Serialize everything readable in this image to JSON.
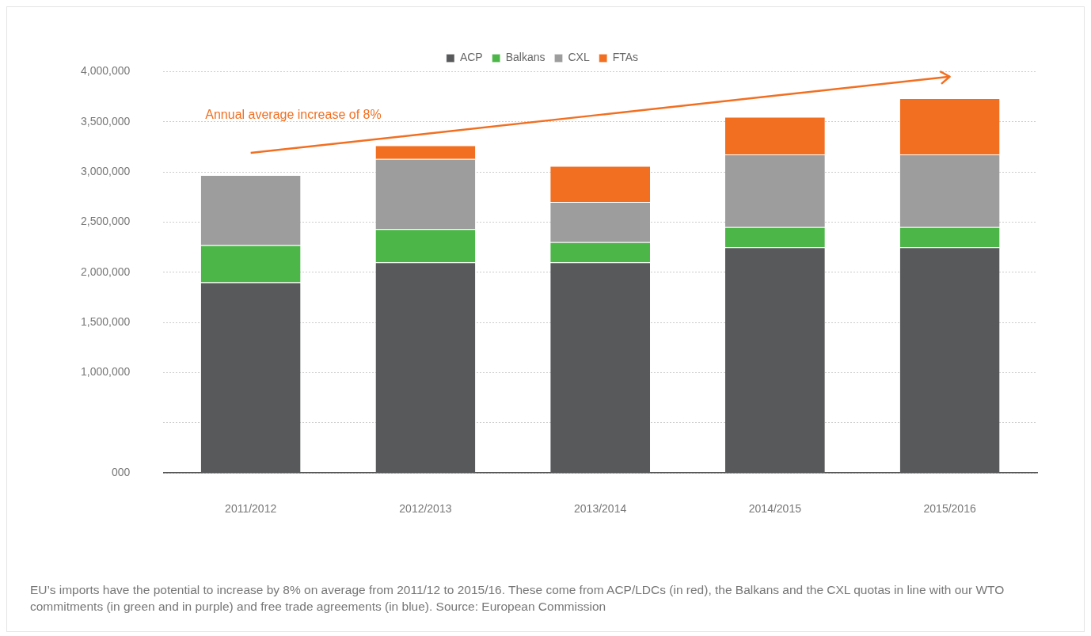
{
  "chart_data": {
    "type": "bar",
    "stacked": true,
    "legend": "top",
    "grid": "y",
    "marker": "none",
    "categories": [
      "2011/2012",
      "2012/2013",
      "2013/2014",
      "2014/2015",
      "2015/2016"
    ],
    "series": [
      {
        "name": "ACP",
        "color": "#58595b",
        "values": [
          1900000,
          2100000,
          2100000,
          2250000,
          2250000
        ]
      },
      {
        "name": "Balkans",
        "color": "#4cb748",
        "values": [
          370000,
          330000,
          200000,
          200000,
          200000
        ]
      },
      {
        "name": "CXL",
        "color": "#9d9d9d",
        "values": [
          700000,
          700000,
          400000,
          725000,
          725000
        ]
      },
      {
        "name": "FTAs",
        "color": "#f26f21",
        "values": [
          null,
          135000,
          360000,
          375000,
          560000
        ]
      },
      {
        "type": "line",
        "color": "#f26f21",
        "values": [
          3190000,
          3380000,
          3570000,
          3760000,
          3950000
        ]
      }
    ],
    "ylim": [
      0,
      4000000
    ],
    "yticks": [
      {
        "value": 0,
        "label": "000"
      },
      {
        "value": 500000,
        "label": null
      },
      {
        "value": 1000000,
        "label": "1,000,000"
      },
      {
        "value": 1500000,
        "label": "1,500,000"
      },
      {
        "value": 2000000,
        "label": "2,000,000"
      },
      {
        "value": 2500000,
        "label": "2,500,000"
      },
      {
        "value": 3000000,
        "label": "3,000,000"
      },
      {
        "value": 3500000,
        "label": "3,500,000"
      },
      {
        "value": 4000000,
        "label": "4,000,000"
      }
    ],
    "annotations": [
      "Annual average increase of 8%",
      "EU’s imports have the potential to increase by 8% on average from 2011/12 to 2015/16. These come from ACP/LDCs (in red), the Balkans and the CXL quotas in line with our WTO commitments (in green and in purple) and free trade agreements (in blue). Source: European Commission"
    ]
  }
}
